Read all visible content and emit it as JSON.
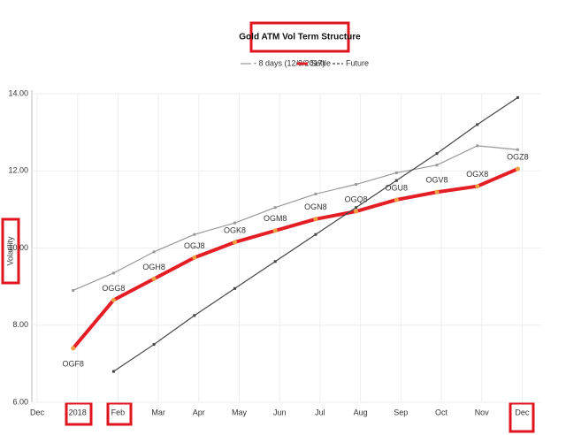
{
  "chart_data": {
    "type": "line",
    "title": "Gold ATM Vol Term Structure",
    "y_label": "Volatility",
    "categories": [
      "Dec",
      "2018",
      "Feb",
      "Mar",
      "Apr",
      "May",
      "Jun",
      "Jul",
      "Aug",
      "Sep",
      "Oct",
      "Nov",
      "Dec"
    ],
    "ylim": [
      6,
      14
    ],
    "yticks": [
      {
        "value": 6,
        "label": "6.00"
      },
      {
        "value": 8,
        "label": "8.00"
      },
      {
        "value": 10,
        "label": "10.00"
      },
      {
        "value": 12,
        "label": "12.00"
      },
      {
        "value": 14,
        "label": "14.00"
      }
    ],
    "grid": true,
    "series": [
      {
        "name": "- 8 days (12/8/2017)",
        "color": "#999999",
        "values": [
          null,
          8.9,
          9.35,
          9.9,
          10.35,
          10.65,
          11.05,
          11.4,
          11.65,
          11.95,
          12.15,
          12.65,
          12.55
        ]
      },
      {
        "name": "Settle",
        "color": "#e31e24",
        "values": [
          null,
          7.4,
          8.65,
          9.2,
          9.75,
          10.15,
          10.45,
          10.75,
          10.95,
          11.25,
          11.45,
          11.6,
          12.05
        ],
        "point_labels": [
          null,
          "OGF8",
          "OGG8",
          "OGH8",
          "OGJ8",
          "OGK8",
          "OGM8",
          "OGN8",
          "OGQ8",
          "OGU8",
          "OGV8",
          "OGX8",
          "OGZ8"
        ]
      },
      {
        "name": "Future",
        "color": "#444444",
        "values": [
          null,
          null,
          6.8,
          7.5,
          8.25,
          8.95,
          9.65,
          10.35,
          11.05,
          11.75,
          12.45,
          13.2,
          13.9
        ]
      }
    ]
  }
}
